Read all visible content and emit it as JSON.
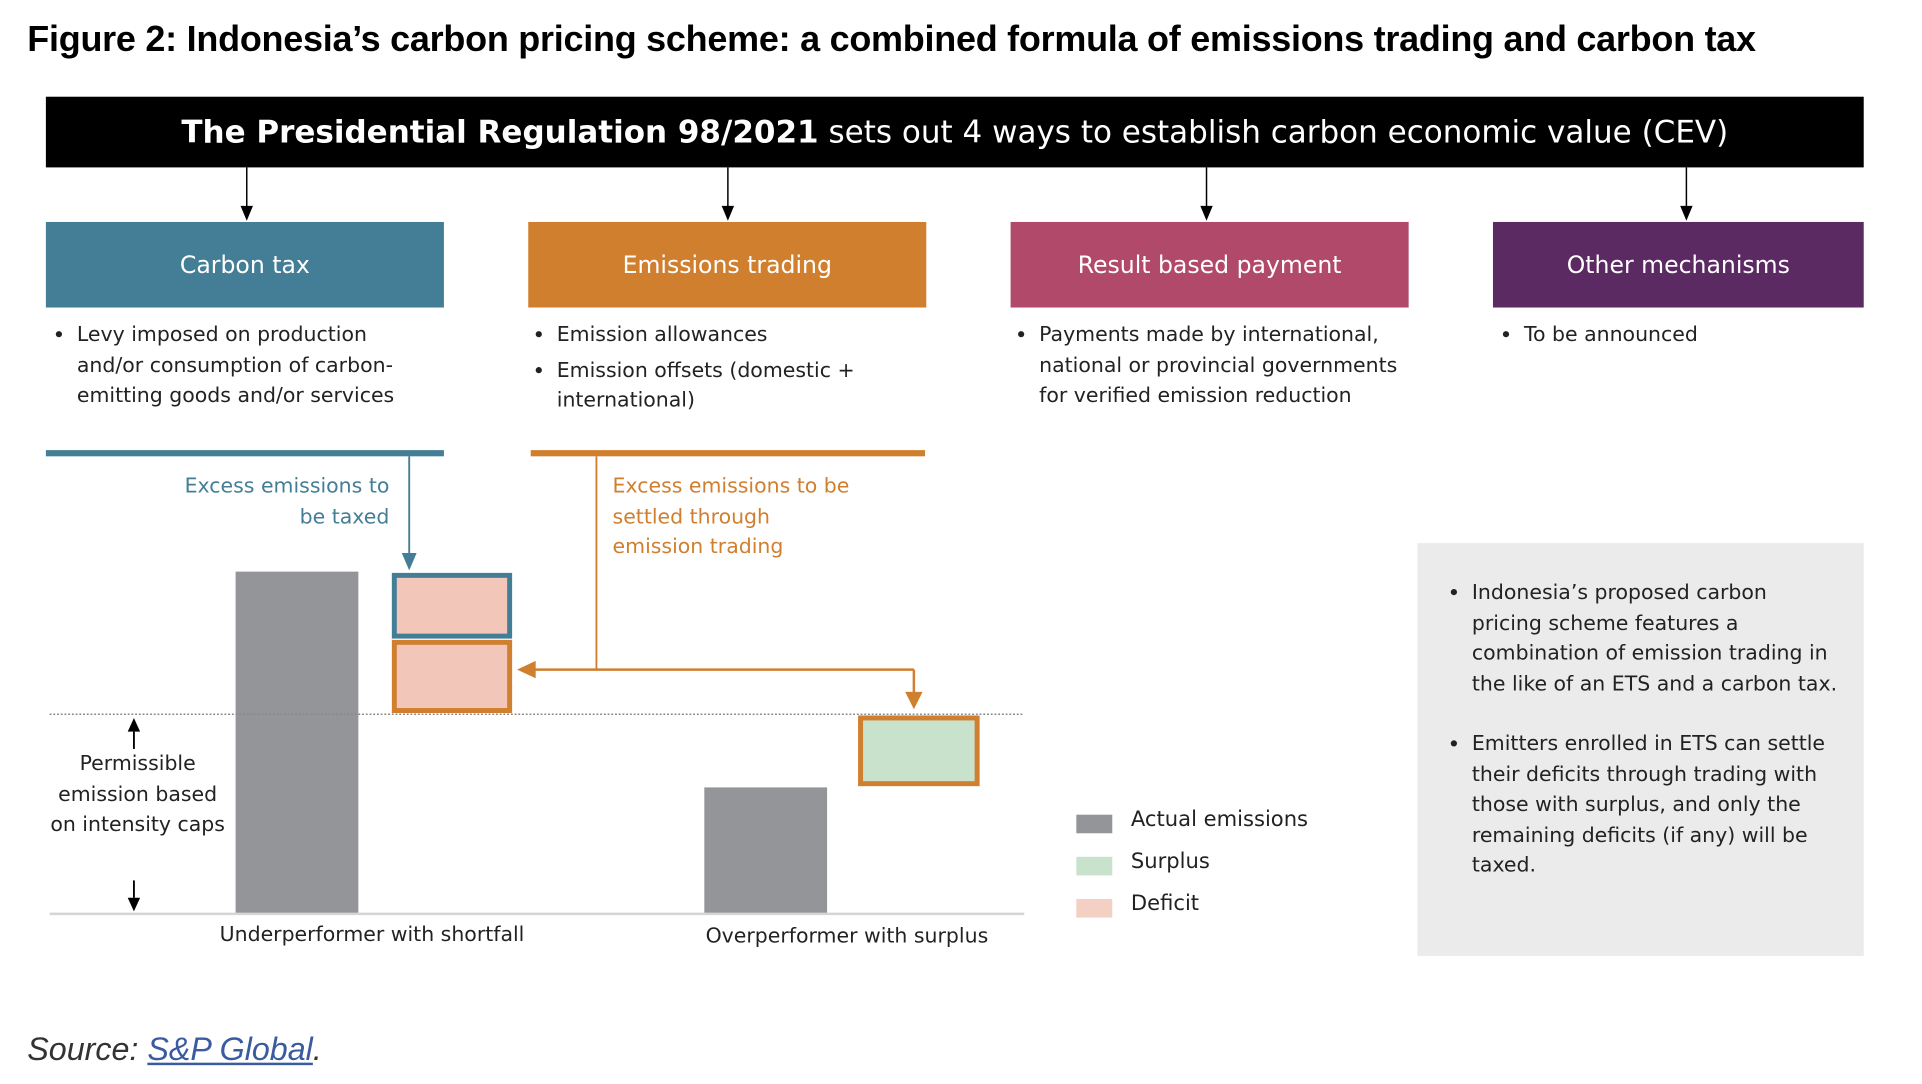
{
  "title": "Figure 2: Indonesia’s carbon pricing scheme: a combined formula of emissions trading and carbon tax",
  "banner": {
    "bold": "The Presidential Regulation 98/2021",
    "rest": "sets out 4 ways to establish carbon economic value (CEV)"
  },
  "categories": [
    {
      "label": "Carbon tax",
      "color": "#437E96",
      "bullets": [
        "Levy imposed on production and/or consumption of carbon-emitting goods and/or services"
      ]
    },
    {
      "label": "Emissions trading",
      "color": "#D07F2F",
      "bullets": [
        "Emission allowances",
        "Emission offsets (domestic + international)"
      ]
    },
    {
      "label": "Result based payment",
      "color": "#B0496A",
      "bullets": [
        "Payments made by international, national or provincial governments for verified emission reduction"
      ]
    },
    {
      "label": "Other mechanisms",
      "color": "#5C2A63",
      "bullets": [
        "To be announced"
      ]
    }
  ],
  "diagram": {
    "tax_note": "Excess emissions to be taxed",
    "trade_note": "Excess emissions to be settled through emission trading",
    "permissible_note": "Permissible emission based on intensity caps",
    "underperformer": "Underperformer with shortfall",
    "overperformer": "Overperformer with surplus"
  },
  "legend": [
    {
      "label": "Actual emissions",
      "color": "#939598"
    },
    {
      "label": "Surplus",
      "color": "#C9E2CB"
    },
    {
      "label": "Deficit",
      "color": "#F4CFC3"
    }
  ],
  "panel": [
    "Indonesia’s proposed carbon pricing scheme features a combination of emission trading in the like of an ETS and a carbon tax.",
    "Emitters enrolled in ETS can settle their deficits through trading with those with surplus, and only the remaining deficits (if any) will be taxed."
  ],
  "source": {
    "prefix": "Source:",
    "link": "S&P Global",
    "suffix": "."
  }
}
